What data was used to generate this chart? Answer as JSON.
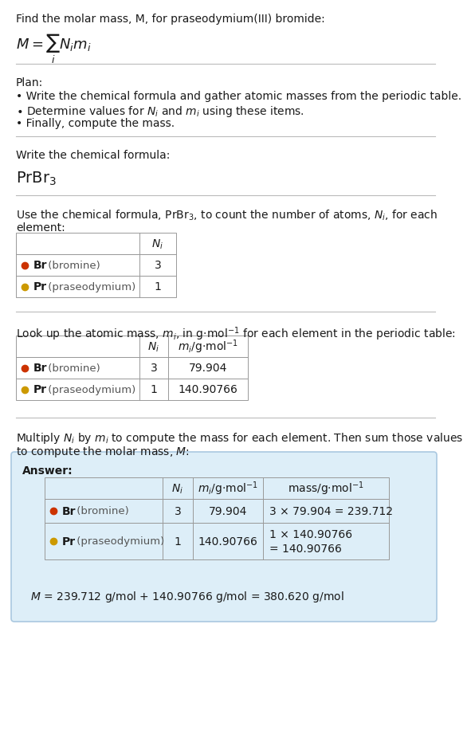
{
  "title_line": "Find the molar mass, M, for praseodymium(III) bromide:",
  "bg_color": "#ffffff",
  "answer_bg": "#ddeeff",
  "answer_border": "#aabbcc",
  "plan_header": "Plan:",
  "plan_bullet1": "• Write the chemical formula and gather atomic masses from the periodic table.",
  "plan_bullet3": "• Finally, compute the mass.",
  "formula_section_header": "Write the chemical formula:",
  "count_section_line1": "Use the chemical formula, PrBr$_3$, to count the number of atoms, $N_i$, for each",
  "count_section_line2": "element:",
  "lookup_section_header": "Look up the atomic mass, $m_i$, in g·mol$^{-1}$ for each element in the periodic table:",
  "multiply_line1": "Multiply $N_i$ by $m_i$ to compute the mass for each element. Then sum those values",
  "multiply_line2": "to compute the molar mass, $M$:",
  "answer_header": "Answer:",
  "count_rows": [
    {
      "color": "#cc3300",
      "label_bold": "Br",
      "label_rest": " (bromine)",
      "Ni": "3"
    },
    {
      "color": "#cc9900",
      "label_bold": "Pr",
      "label_rest": " (praseodymium)",
      "Ni": "1"
    }
  ],
  "lookup_rows": [
    {
      "color": "#cc3300",
      "label_bold": "Br",
      "label_rest": " (bromine)",
      "Ni": "3",
      "mi": "79.904"
    },
    {
      "color": "#cc9900",
      "label_bold": "Pr",
      "label_rest": " (praseodymium)",
      "Ni": "1",
      "mi": "140.90766"
    }
  ],
  "answer_rows": [
    {
      "color": "#cc3300",
      "label_bold": "Br",
      "label_rest": " (bromine)",
      "Ni": "3",
      "mi": "79.904",
      "mass1": "3 × 79.904 = 239.712",
      "mass2": ""
    },
    {
      "color": "#cc9900",
      "label_bold": "Pr",
      "label_rest": " (praseodymium)",
      "Ni": "1",
      "mi": "140.90766",
      "mass1": "1 × 140.90766",
      "mass2": "= 140.90766"
    }
  ],
  "final_answer": "$M$ = 239.712 g/mol + 140.90766 g/mol = 380.620 g/mol",
  "text_color": "#1a1a1a",
  "sep_color": "#bbbbbb",
  "table_border": "#999999",
  "fs": 10.0,
  "fs_formula": 13.0,
  "fs_prbr": 14.0
}
